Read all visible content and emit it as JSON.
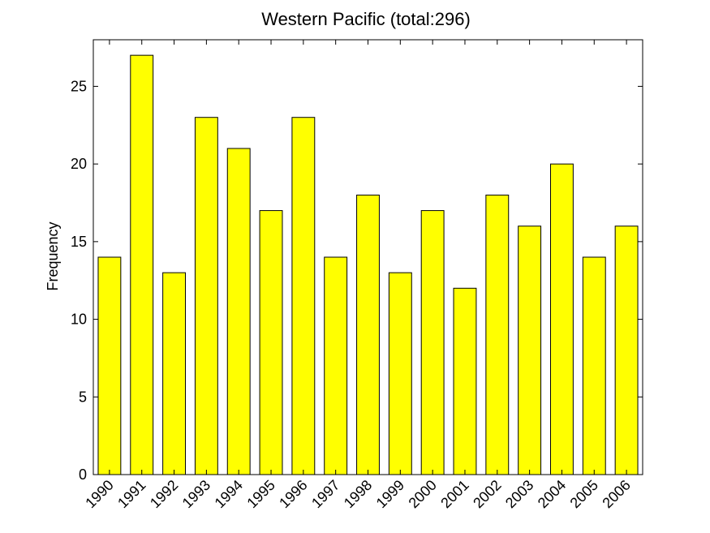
{
  "chart_data": {
    "type": "bar",
    "title": "Western Pacific  (total:296)",
    "xlabel": "",
    "ylabel": "Frequency",
    "ylim": [
      0,
      28
    ],
    "yticks": [
      0,
      5,
      10,
      15,
      20,
      25
    ],
    "categories": [
      "1990",
      "1991",
      "1992",
      "1993",
      "1994",
      "1995",
      "1996",
      "1997",
      "1998",
      "1999",
      "2000",
      "2001",
      "2002",
      "2003",
      "2004",
      "2005",
      "2006"
    ],
    "values": [
      14,
      27,
      13,
      23,
      21,
      17,
      23,
      14,
      18,
      13,
      17,
      12,
      18,
      16,
      20,
      14,
      16
    ],
    "bar_color": "#ffff00",
    "bar_edge_color": "#000000",
    "grid": false,
    "legend": "none"
  }
}
